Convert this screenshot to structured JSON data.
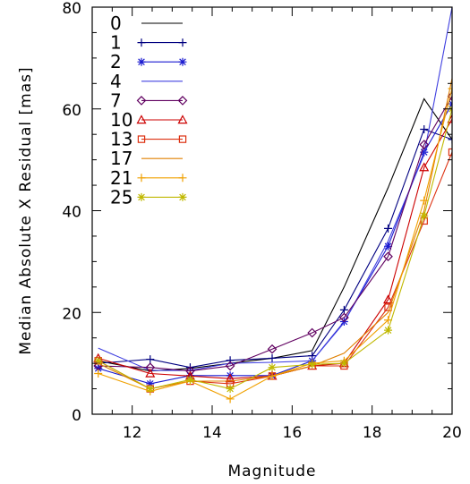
{
  "chart_data": {
    "type": "line",
    "title": "",
    "xlabel": "Magnitude",
    "ylabel": "Median Absolute X Residual [mas]",
    "xlim": [
      11,
      20
    ],
    "ylim": [
      0,
      80
    ],
    "xticks": [
      12,
      14,
      16,
      18,
      20
    ],
    "yticks": [
      0,
      20,
      40,
      60,
      80
    ],
    "grid": false,
    "legend_position": "top-left",
    "x": [
      11.15,
      12.45,
      13.45,
      14.45,
      15.5,
      16.5,
      17.3,
      18.4,
      19.3,
      20.0
    ],
    "series": [
      {
        "name": "0",
        "color": "#000000",
        "marker": "none",
        "values": [
          10.5,
          8.5,
          9.0,
          10.0,
          11.0,
          12.5,
          25.0,
          44.5,
          62.0,
          54.0
        ]
      },
      {
        "name": "1",
        "color": "#000080",
        "marker": "plus",
        "values": [
          10.0,
          10.8,
          9.2,
          10.6,
          11.0,
          11.5,
          20.5,
          36.5,
          56.0,
          54.0
        ]
      },
      {
        "name": "2",
        "color": "#1a1ad0",
        "marker": "asterisk",
        "values": [
          9.0,
          6.0,
          7.6,
          7.6,
          7.6,
          10.5,
          18.2,
          33.0,
          51.5,
          61.0
        ]
      },
      {
        "name": "4",
        "color": "#4040e0",
        "marker": "none",
        "values": [
          13.0,
          8.6,
          8.6,
          10.0,
          10.2,
          10.5,
          18.0,
          34.0,
          51.0,
          80.0
        ]
      },
      {
        "name": "7",
        "color": "#600060",
        "marker": "diamond",
        "values": [
          9.5,
          9.2,
          8.5,
          9.5,
          12.8,
          16.0,
          19.0,
          31.0,
          53.0,
          62.5
        ]
      },
      {
        "name": "10",
        "color": "#cc0000",
        "marker": "triangle",
        "values": [
          11.0,
          8.0,
          7.5,
          7.0,
          7.5,
          9.5,
          10.0,
          22.5,
          48.5,
          58.0
        ]
      },
      {
        "name": "13",
        "color": "#dd3010",
        "marker": "square",
        "values": [
          10.5,
          5.0,
          6.5,
          6.0,
          7.5,
          9.5,
          9.5,
          21.0,
          38.0,
          51.5
        ]
      },
      {
        "name": "17",
        "color": "#e08000",
        "marker": "none",
        "values": [
          10.0,
          5.0,
          6.5,
          6.5,
          7.5,
          9.5,
          12.0,
          20.0,
          40.0,
          66.0
        ]
      },
      {
        "name": "21",
        "color": "#f0a000",
        "marker": "plus",
        "values": [
          8.0,
          4.5,
          6.5,
          3.0,
          7.5,
          10.0,
          10.5,
          18.5,
          42.0,
          64.0
        ]
      },
      {
        "name": "25",
        "color": "#c0b800",
        "marker": "asterisk",
        "values": [
          10.5,
          5.0,
          6.8,
          5.0,
          9.2,
          9.8,
          10.0,
          16.5,
          39.0,
          60.0
        ]
      }
    ]
  }
}
